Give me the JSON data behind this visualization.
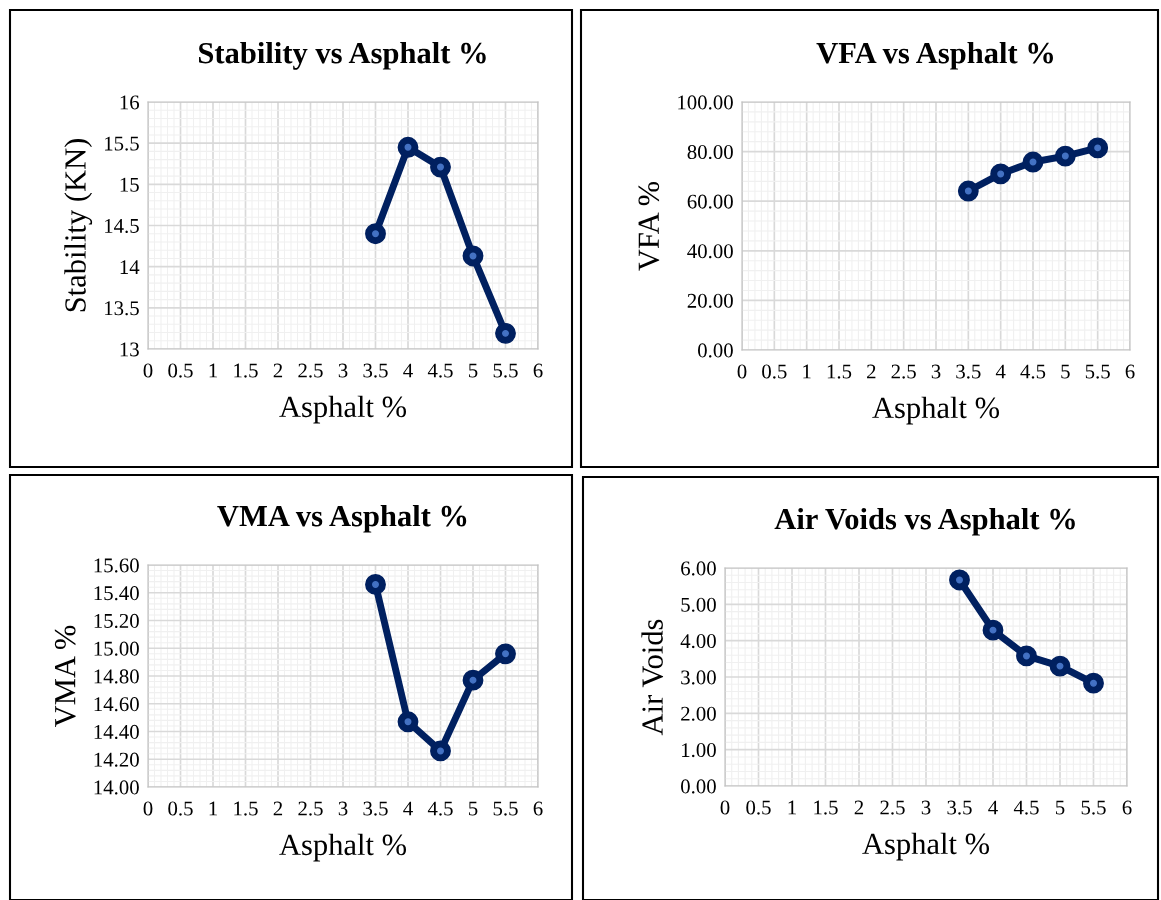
{
  "chart_data": [
    {
      "type": "line",
      "title": "Stability vs Asphalt %",
      "xlabel": "Asphalt %",
      "ylabel": "Stability (KN)",
      "x": [
        3.5,
        4,
        4.5,
        5,
        5.5
      ],
      "series": [
        {
          "color": "#002060",
          "values": [
            14.4,
            15.45,
            15.21,
            14.13,
            13.19
          ]
        }
      ],
      "xlim": [
        0,
        6
      ],
      "xticks": [
        0,
        0.5,
        1,
        1.5,
        2,
        2.5,
        3,
        3.5,
        4,
        4.5,
        5,
        5.5,
        6
      ],
      "ylim": [
        13,
        16
      ],
      "yticks": [
        13,
        13.5,
        14,
        14.5,
        15,
        15.5,
        16
      ],
      "grid": true,
      "marker": "circle",
      "line_style": "solid",
      "legend": false
    },
    {
      "type": "line",
      "title": "VFA vs Asphalt %",
      "xlabel": "Asphalt %",
      "ylabel": "VFA %",
      "x": [
        3.5,
        4,
        4.5,
        5,
        5.5
      ],
      "series": [
        {
          "color": "#002060",
          "values": [
            64.1,
            71.0,
            75.8,
            78.2,
            81.5
          ]
        }
      ],
      "xlim": [
        0,
        6
      ],
      "xticks": [
        0,
        0.5,
        1,
        1.5,
        2,
        2.5,
        3,
        3.5,
        4,
        4.5,
        5,
        5.5,
        6
      ],
      "ylim": [
        0,
        100
      ],
      "yticks": [
        {
          "value": 0,
          "label": "0.00"
        },
        {
          "value": 20,
          "label": "20.00"
        },
        {
          "value": 40,
          "label": "40.00"
        },
        {
          "value": 60,
          "label": "60.00"
        },
        {
          "value": 80,
          "label": "80.00"
        },
        {
          "value": 100,
          "label": "100.00"
        }
      ],
      "grid": true,
      "marker": "circle",
      "line_style": "solid",
      "legend": false
    },
    {
      "type": "line",
      "title": "VMA vs Asphalt %",
      "xlabel": "Asphalt %",
      "ylabel": "VMA %",
      "x": [
        3.5,
        4,
        4.5,
        5,
        5.5
      ],
      "series": [
        {
          "color": "#002060",
          "values": [
            15.46,
            14.47,
            14.26,
            14.77,
            14.96
          ]
        }
      ],
      "xlim": [
        0,
        6
      ],
      "xticks": [
        0,
        0.5,
        1,
        1.5,
        2,
        2.5,
        3,
        3.5,
        4,
        4.5,
        5,
        5.5,
        6
      ],
      "ylim": [
        14,
        15.6
      ],
      "yticks": [
        {
          "value": 14,
          "label": "14.00"
        },
        {
          "value": 14.2,
          "label": "14.20"
        },
        {
          "value": 14.4,
          "label": "14.40"
        },
        {
          "value": 14.6,
          "label": "14.60"
        },
        {
          "value": 14.8,
          "label": "14.80"
        },
        {
          "value": 15,
          "label": "15.00"
        },
        {
          "value": 15.2,
          "label": "15.20"
        },
        {
          "value": 15.4,
          "label": "15.40"
        },
        {
          "value": 15.6,
          "label": "15.60"
        }
      ],
      "grid": true,
      "marker": "circle",
      "line_style": "solid",
      "legend": false
    },
    {
      "type": "line",
      "title": "Air Voids vs Asphalt %",
      "xlabel": "Asphalt %",
      "ylabel": "Air Voids",
      "x": [
        3.5,
        4,
        4.5,
        5,
        5.5
      ],
      "series": [
        {
          "color": "#002060",
          "values": [
            5.67,
            4.29,
            3.58,
            3.3,
            2.83
          ]
        }
      ],
      "xlim": [
        0,
        6
      ],
      "xticks": [
        0,
        0.5,
        1,
        1.5,
        2,
        2.5,
        3,
        3.5,
        4,
        4.5,
        5,
        5.5,
        6
      ],
      "ylim": [
        0,
        6
      ],
      "yticks": [
        {
          "value": 0,
          "label": "0.00"
        },
        {
          "value": 1,
          "label": "1.00"
        },
        {
          "value": 2,
          "label": "2.00"
        },
        {
          "value": 3,
          "label": "3.00"
        },
        {
          "value": 4,
          "label": "4.00"
        },
        {
          "value": 5,
          "label": "5.00"
        },
        {
          "value": 6,
          "label": "6.00"
        }
      ],
      "grid": true,
      "marker": "circle",
      "line_style": "solid",
      "legend": false
    }
  ]
}
